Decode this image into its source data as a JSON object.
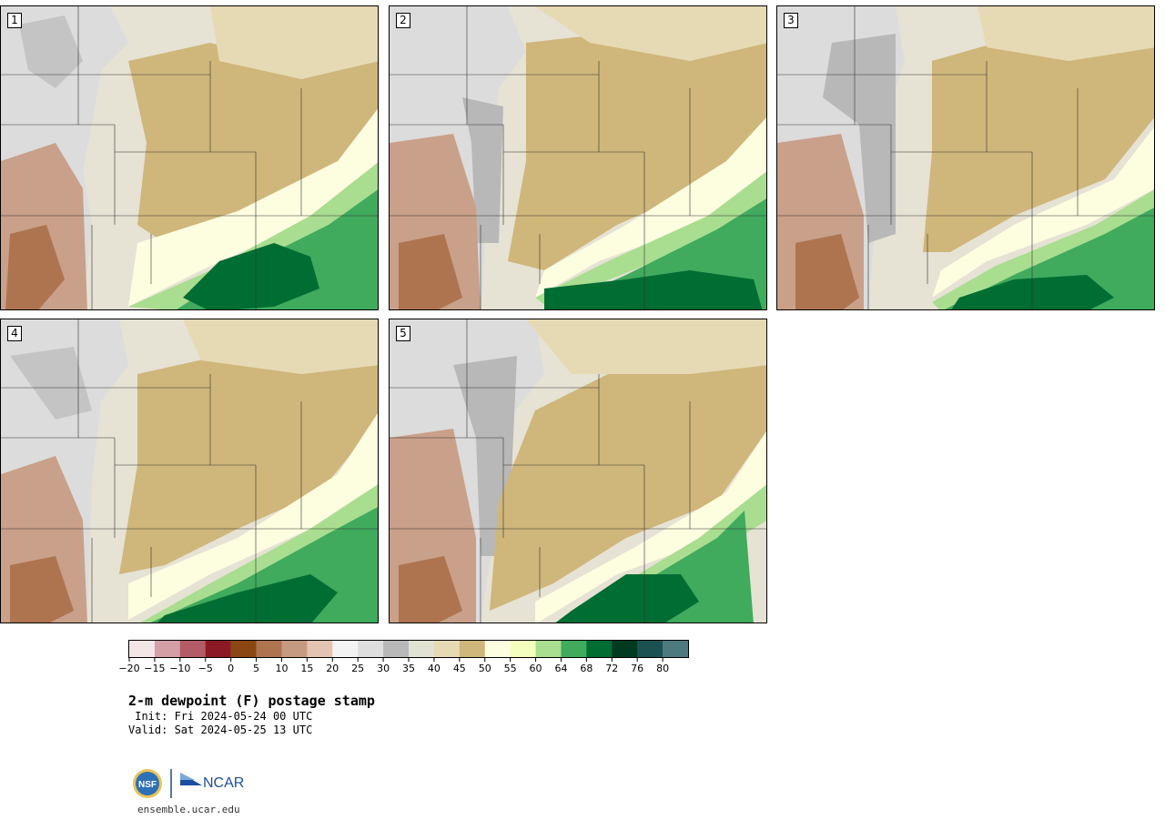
{
  "panels": [
    {
      "label": "1"
    },
    {
      "label": "2"
    },
    {
      "label": "3"
    },
    {
      "label": "4"
    },
    {
      "label": "5"
    }
  ],
  "colorbar": {
    "colors": [
      "#f3e6e6",
      "#d59fa6",
      "#b15c66",
      "#8c1a24",
      "#8a4713",
      "#ae7450",
      "#c69a80",
      "#e2c4b0",
      "#f3f3f3",
      "#dedede",
      "#b8b8b8",
      "#e2e2d4",
      "#e6dab4",
      "#cfb67a",
      "#fdfde0",
      "#f5ffbd",
      "#a9dd90",
      "#40aa5d",
      "#006d33",
      "#003a20",
      "#1c5152",
      "#4d7a7e"
    ],
    "tick_labels": [
      "−20",
      "−15",
      "−10",
      "−5",
      "0",
      "5",
      "10",
      "15",
      "20",
      "25",
      "30",
      "35",
      "40",
      "45",
      "50",
      "55",
      "60",
      "64",
      "68",
      "72",
      "76",
      "80"
    ]
  },
  "title": "2-m dewpoint (F) postage stamp",
  "init": " Init: Fri 2024-05-24 00 UTC",
  "valid": "Valid: Sat 2024-05-25 13 UTC",
  "logos": {
    "nsf": "NSF",
    "ncar": "NCAR"
  },
  "url": "ensemble.ucar.edu"
}
